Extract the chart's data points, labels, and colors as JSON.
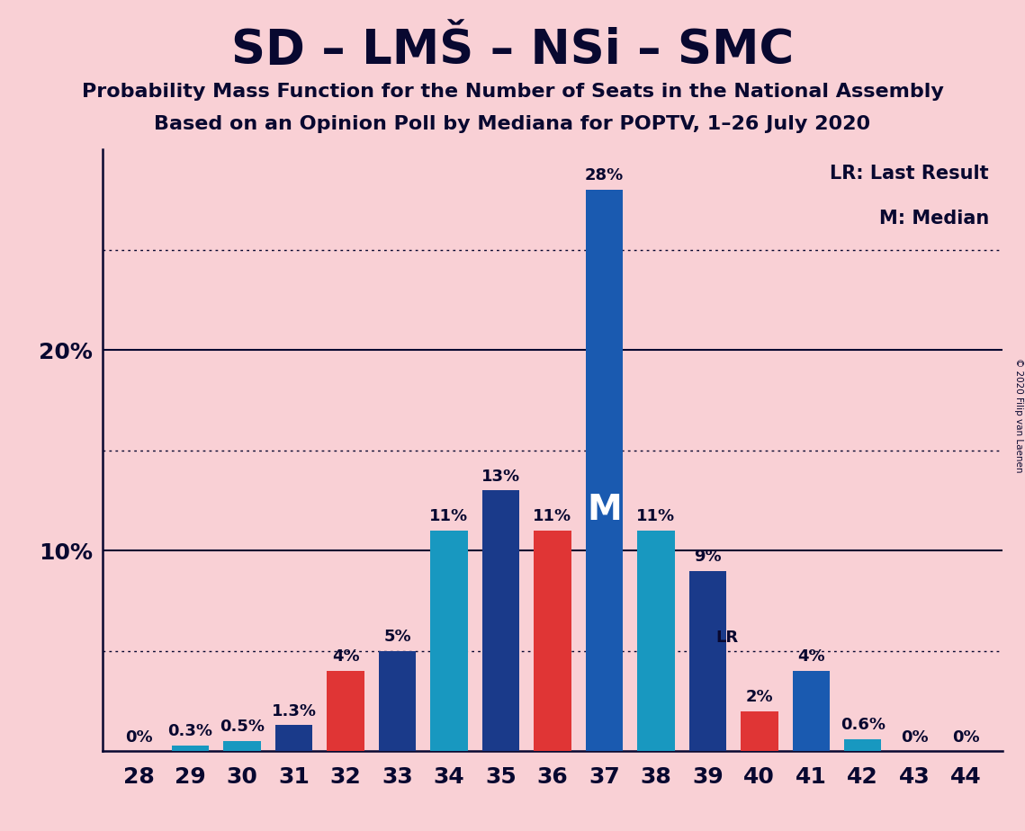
{
  "title": "SD – LMŠ – NSi – SMC",
  "subtitle1": "Probability Mass Function for the Number of Seats in the National Assembly",
  "subtitle2": "Based on an Opinion Poll by Mediana for POPTV, 1–26 July 2020",
  "copyright": "© 2020 Filip van Laenen",
  "categories": [
    28,
    29,
    30,
    31,
    32,
    33,
    34,
    35,
    36,
    37,
    38,
    39,
    40,
    41,
    42,
    43,
    44
  ],
  "values": [
    0.0,
    0.3,
    0.5,
    1.3,
    4.0,
    5.0,
    11.0,
    13.0,
    11.0,
    28.0,
    11.0,
    9.0,
    2.0,
    4.0,
    0.6,
    0.0,
    0.0
  ],
  "labels": [
    "0%",
    "0.3%",
    "0.5%",
    "1.3%",
    "4%",
    "5%",
    "11%",
    "13%",
    "11%",
    "28%",
    "11%",
    "9%",
    "2%",
    "4%",
    "0.6%",
    "0%",
    "0%"
  ],
  "bar_colors": [
    "#1a3a8a",
    "#1898c0",
    "#1898c0",
    "#1a3a8a",
    "#e03535",
    "#1a3a8a",
    "#1898c0",
    "#1a3a8a",
    "#e03535",
    "#1a5ab0",
    "#1898c0",
    "#1a3a8a",
    "#e03535",
    "#1a5ab0",
    "#1898c0",
    "#1a3a8a",
    "#1898c0"
  ],
  "median_seat": 37,
  "lr_seat": 40,
  "background_color": "#f9d0d5",
  "ylim_max": 30,
  "solid_lines": [
    10,
    20
  ],
  "dotted_lines": [
    5,
    15,
    25
  ],
  "legend_lr": "LR: Last Result",
  "legend_m": "M: Median",
  "title_color": "#080830",
  "bar_width": 0.72,
  "label_fontsize": 13,
  "tick_fontsize": 18,
  "subtitle_fontsize": 16,
  "title_fontsize": 38
}
